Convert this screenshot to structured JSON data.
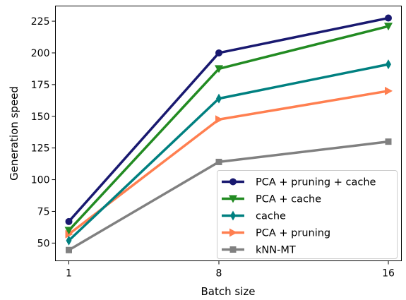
{
  "chart_data": {
    "type": "line",
    "x": [
      "1",
      "8",
      "16"
    ],
    "xlabel": "Batch size",
    "ylabel": "Generation speed",
    "ylim": [
      36,
      237
    ],
    "yticks": [
      50,
      75,
      100,
      125,
      150,
      175,
      200,
      225
    ],
    "grid": false,
    "legend_position": "lower-right",
    "series": [
      {
        "name": "PCA + pruning + cache",
        "values": [
          67,
          200,
          227.5
        ],
        "color": "#191970",
        "marker": "circle"
      },
      {
        "name": "PCA + cache",
        "values": [
          60,
          187.5,
          221
        ],
        "color": "#228b22",
        "marker": "triangle-down"
      },
      {
        "name": "cache",
        "values": [
          52,
          164,
          191
        ],
        "color": "#008080",
        "marker": "thin-diamond"
      },
      {
        "name": "PCA + pruning",
        "values": [
          57,
          147.5,
          170
        ],
        "color": "#ff7f50",
        "marker": "triangle-right"
      },
      {
        "name": "kNN-MT",
        "values": [
          44.5,
          114,
          130
        ],
        "color": "#808080",
        "marker": "square"
      }
    ]
  }
}
